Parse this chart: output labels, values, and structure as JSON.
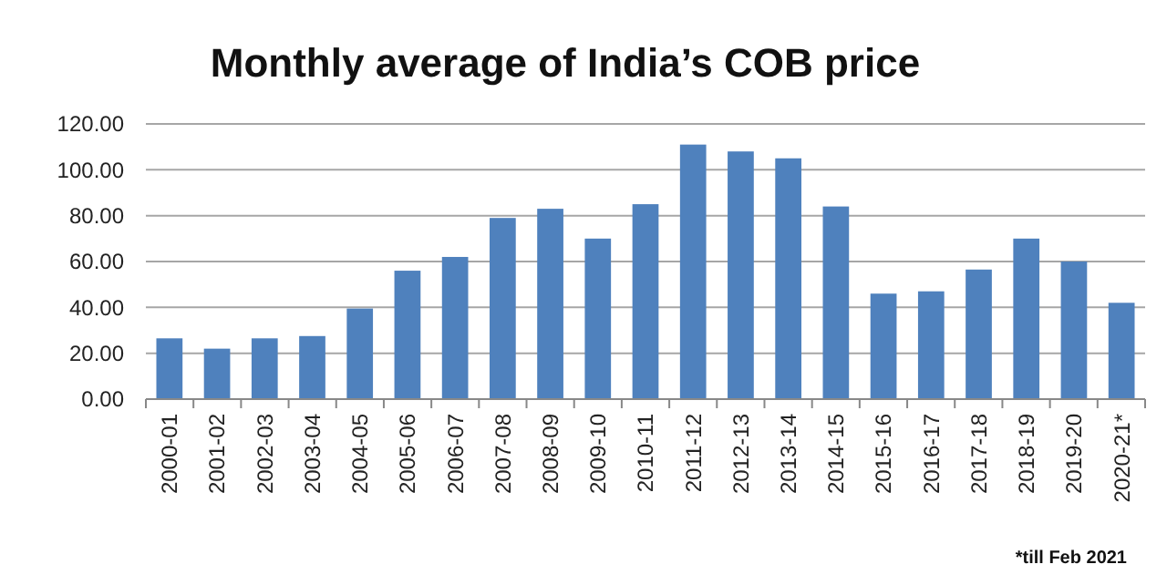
{
  "chart_data": {
    "type": "bar",
    "title": "Monthly average of India’s COB price",
    "categories": [
      "2000-01",
      "2001-02",
      "2002-03",
      "2003-04",
      "2004-05",
      "2005-06",
      "2006-07",
      "2007-08",
      "2008-09",
      "2009-10",
      "2010-11",
      "2011-12",
      "2012-13",
      "2013-14",
      "2014-15",
      "2015-16",
      "2016-17",
      "2017-18",
      "2018-19",
      "2019-20",
      "2020-21*"
    ],
    "values": [
      26.5,
      22,
      26.5,
      27.5,
      39.5,
      56,
      62,
      79,
      83,
      70,
      85,
      111,
      108,
      105,
      84,
      46,
      47,
      56.5,
      70,
      60,
      42
    ],
    "color": "#4f81bd",
    "ylim": [
      0,
      120
    ],
    "yticks": [
      {
        "value": 0,
        "label": "0.00"
      },
      {
        "value": 20,
        "label": "20.00"
      },
      {
        "value": 40,
        "label": "40.00"
      },
      {
        "value": 60,
        "label": "60.00"
      },
      {
        "value": 80,
        "label": "80.00"
      },
      {
        "value": 100,
        "label": "100.00"
      },
      {
        "value": 120,
        "label": "120.00"
      }
    ],
    "grid": "y",
    "annotations": [
      "*till Feb 2021"
    ]
  }
}
